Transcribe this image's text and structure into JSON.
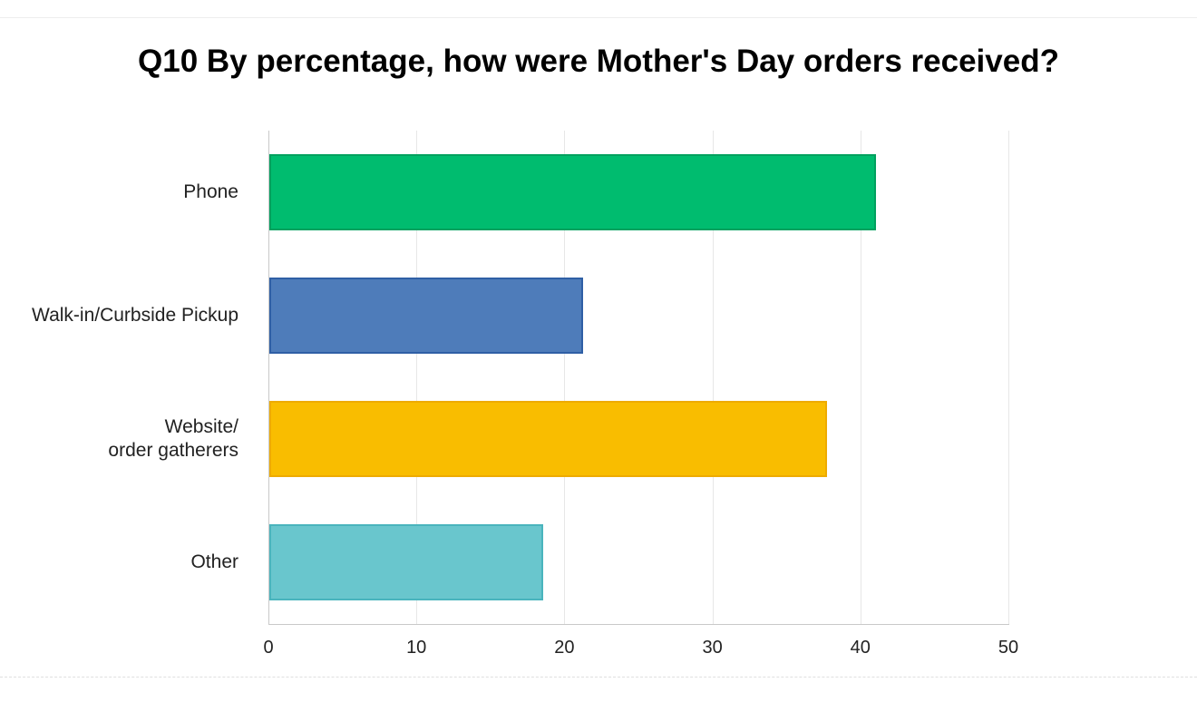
{
  "page": {
    "background": "#ffffff"
  },
  "chart_data": {
    "type": "bar",
    "orientation": "horizontal",
    "title": "Q10 By percentage, how were Mother's Day orders received?",
    "categories": [
      "Phone",
      "Walk-in/Curbside Pickup",
      "Website/\norder gatherers",
      "Other"
    ],
    "values": [
      41,
      21.2,
      37.7,
      18.5
    ],
    "xlabel": "",
    "ylabel": "",
    "xlim": [
      0,
      50
    ],
    "x_ticks": [
      0,
      10,
      20,
      30,
      40,
      50
    ],
    "grid": "vertical-only",
    "legend": "none",
    "bar_colors": [
      {
        "name": "green",
        "fill": "#00bc6f",
        "border": "#00a05e"
      },
      {
        "name": "blue",
        "fill": "#4e7cba",
        "border": "#2f5fa5"
      },
      {
        "name": "yellow",
        "fill": "#f9bd00",
        "border": "#eeab00"
      },
      {
        "name": "teal",
        "fill": "#69c6cd",
        "border": "#4ab4bd"
      }
    ],
    "axis_color": "#c9c9c9",
    "gridline_color": "#e7e7e7",
    "label_color": "#222222",
    "tick_color": "#222222"
  }
}
